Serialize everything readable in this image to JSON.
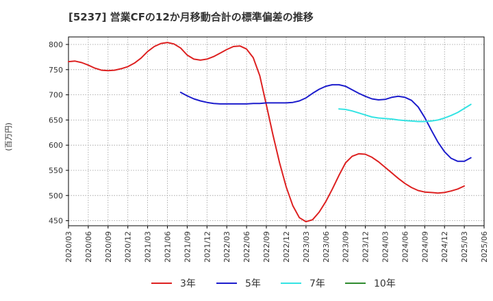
{
  "chart_data": {
    "type": "line",
    "title": "[5237]  営業CFの12か月移動合計の標準偏差の推移",
    "ylabel": "(百万円)",
    "xlabel": "",
    "ylim": [
      440,
      815
    ],
    "yticks": [
      450,
      500,
      550,
      600,
      650,
      700,
      750,
      800
    ],
    "x_tick_labels": [
      "2020/03",
      "2020/06",
      "2020/09",
      "2020/12",
      "2021/03",
      "2021/06",
      "2021/09",
      "2021/12",
      "2022/03",
      "2022/06",
      "2022/09",
      "2022/12",
      "2023/03",
      "2023/06",
      "2023/09",
      "2023/12",
      "2024/03",
      "2024/06",
      "2024/09",
      "2024/12",
      "2025/03",
      "2025/06"
    ],
    "x_start": "2020/03",
    "x_months": [
      "2020/03",
      "2020/04",
      "2020/05",
      "2020/06",
      "2020/07",
      "2020/08",
      "2020/09",
      "2020/10",
      "2020/11",
      "2020/12",
      "2021/01",
      "2021/02",
      "2021/03",
      "2021/04",
      "2021/05",
      "2021/06",
      "2021/07",
      "2021/08",
      "2021/09",
      "2021/10",
      "2021/11",
      "2021/12",
      "2022/01",
      "2022/02",
      "2022/03",
      "2022/04",
      "2022/05",
      "2022/06",
      "2022/07",
      "2022/08",
      "2022/09",
      "2022/10",
      "2022/11",
      "2022/12",
      "2023/01",
      "2023/02",
      "2023/03",
      "2023/04",
      "2023/05",
      "2023/06",
      "2023/07",
      "2023/08",
      "2023/09",
      "2023/10",
      "2023/11",
      "2023/12",
      "2024/01",
      "2024/02",
      "2024/03",
      "2024/04",
      "2024/05",
      "2024/06",
      "2024/07",
      "2024/08",
      "2024/09",
      "2024/10",
      "2024/11",
      "2024/12",
      "2025/01",
      "2025/02",
      "2025/03"
    ],
    "grid": true,
    "legend_position": "bottom",
    "series": [
      {
        "name": "3年",
        "color": "#dd2020",
        "start": "2020/03",
        "values": [
          766,
          767,
          764,
          759,
          753,
          749,
          748,
          749,
          752,
          756,
          763,
          773,
          786,
          796,
          802,
          804,
          801,
          793,
          779,
          771,
          769,
          771,
          776,
          783,
          790,
          796,
          797,
          791,
          774,
          738,
          680,
          620,
          565,
          517,
          480,
          456,
          448,
          452,
          467,
          488,
          513,
          540,
          565,
          578,
          583,
          582,
          576,
          567,
          556,
          545,
          534,
          524,
          516,
          510,
          507,
          506,
          505,
          506,
          509,
          513,
          519
        ]
      },
      {
        "name": "5年",
        "color": "#1c1ccc",
        "start": "2021/08",
        "values": [
          705,
          698,
          692,
          688,
          685,
          683,
          682,
          682,
          682,
          682,
          682,
          683,
          683,
          684,
          684,
          684,
          684,
          685,
          688,
          694,
          703,
          711,
          717,
          720,
          720,
          717,
          710,
          703,
          697,
          692,
          690,
          691,
          695,
          697,
          695,
          689,
          676,
          655,
          630,
          606,
          587,
          574,
          568,
          568,
          575
        ]
      },
      {
        "name": "7年",
        "color": "#33e3e3",
        "start": "2023/08",
        "values": [
          672,
          671,
          668,
          664,
          660,
          656,
          654,
          653,
          652,
          650,
          649,
          648,
          647,
          647,
          648,
          650,
          654,
          659,
          665,
          673,
          681
        ]
      },
      {
        "name": "10年",
        "color": "#2e8b2e",
        "start": "2020/03",
        "values": []
      }
    ]
  }
}
